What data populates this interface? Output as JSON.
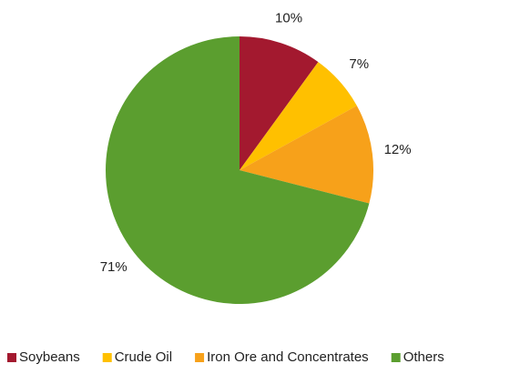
{
  "chart_data": {
    "type": "pie",
    "categories": [
      "Soybeans",
      "Crude Oil",
      "Iron Ore and Concentrates",
      "Others"
    ],
    "values": [
      10,
      7,
      12,
      71
    ],
    "value_labels": [
      "10%",
      "7%",
      "12%",
      "71%"
    ],
    "colors": [
      "#a3192f",
      "#ffc000",
      "#f7a11a",
      "#5b9e2f"
    ],
    "legend": "bottom"
  }
}
